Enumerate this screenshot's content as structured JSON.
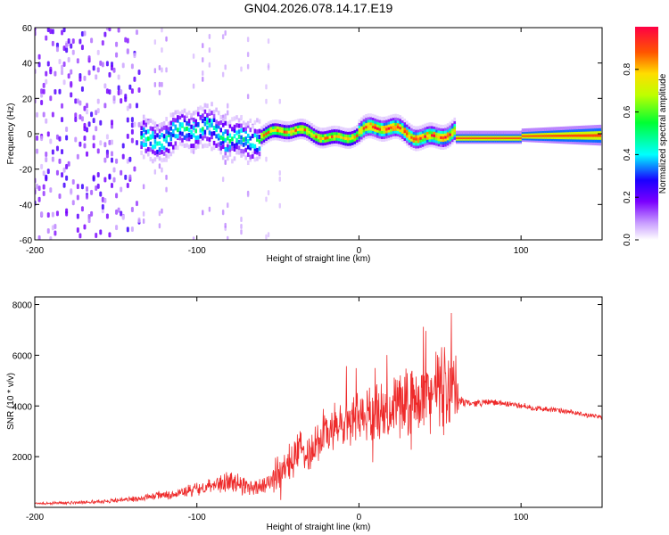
{
  "title": "GN04.2026.078.14.17.E19",
  "chart_data": [
    {
      "type": "heatmap",
      "xlabel": "Height of straight line (km)",
      "ylabel": "Frequency (Hz)",
      "xlim": [
        -200,
        150
      ],
      "ylim": [
        -60,
        60
      ],
      "xticks": [
        -200,
        -100,
        0,
        100
      ],
      "yticks": [
        -60,
        -40,
        -20,
        0,
        20,
        40,
        60
      ],
      "colorbar": {
        "label": "Normalized spectral amplitude",
        "range": [
          0,
          1
        ],
        "ticks": [
          "0.0",
          "0.2",
          "0.4",
          "0.6",
          "0.8"
        ],
        "tick_values": [
          0.0,
          0.2,
          0.4,
          0.6,
          0.8
        ]
      },
      "ridge_segments": [
        {
          "x_range": [
            -200,
            -135
          ],
          "peak_amplitude": 0.12,
          "spread_hz": 60
        },
        {
          "x_range": [
            -135,
            -60
          ],
          "peak_amplitude": 0.45,
          "spread_hz": 10
        },
        {
          "x_range": [
            -60,
            0
          ],
          "peak_amplitude": 0.85,
          "spread_hz": 4
        },
        {
          "x_range": [
            0,
            60
          ],
          "peak_amplitude": 0.95,
          "spread_hz": 5
        },
        {
          "x_range": [
            60,
            150
          ],
          "peak_amplitude": 0.9,
          "spread_hz": 3
        }
      ]
    },
    {
      "type": "line",
      "xlabel": "Height of straight line (km)",
      "ylabel": "SNR (10 * v/v)",
      "xlim": [
        -200,
        150
      ],
      "ylim": [
        0,
        8300
      ],
      "xticks": [
        -200,
        -100,
        0,
        100
      ],
      "yticks": [
        2000,
        4000,
        6000,
        8000
      ],
      "color": "#ee2a2a",
      "series": [
        {
          "name": "SNR",
          "x": [
            -200,
            -180,
            -160,
            -140,
            -125,
            -110,
            -100,
            -90,
            -80,
            -70,
            -60,
            -50,
            -40,
            -30,
            -20,
            -10,
            0,
            10,
            20,
            30,
            40,
            50,
            55,
            60,
            62,
            70,
            80,
            90,
            100,
            110,
            120,
            130,
            140,
            150
          ],
          "y": [
            150,
            180,
            230,
            320,
            450,
            580,
            700,
            950,
            1000,
            850,
            800,
            1200,
            2100,
            2300,
            3000,
            3200,
            3600,
            3700,
            4000,
            4200,
            4400,
            4700,
            4800,
            4500,
            4200,
            4100,
            4150,
            4100,
            4000,
            3900,
            3850,
            3750,
            3650,
            3550
          ],
          "spread": [
            60,
            70,
            90,
            120,
            180,
            260,
            320,
            480,
            520,
            420,
            380,
            600,
            900,
            1000,
            1100,
            1100,
            1200,
            1200,
            1300,
            1400,
            1500,
            1900,
            2200,
            1800,
            200,
            160,
            150,
            140,
            140,
            130,
            120,
            120,
            110,
            110
          ]
        }
      ]
    }
  ]
}
